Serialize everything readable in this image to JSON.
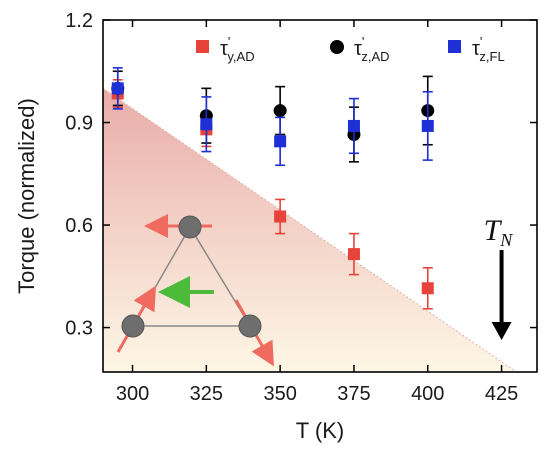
{
  "chart_data": {
    "type": "scatter",
    "xlabel": "T (K)",
    "ylabel": "Torque (normalized)",
    "xlim": [
      290,
      437
    ],
    "ylim": [
      0.17,
      1.2
    ],
    "xticks": [
      300,
      325,
      350,
      375,
      400,
      425
    ],
    "yticks": [
      0.3,
      0.6,
      0.9,
      1.2
    ],
    "grid": false,
    "legend_position": "top",
    "series": [
      {
        "name": "τ'y,AD",
        "name_main": "τ",
        "name_sub": "y,AD",
        "color": "#e8433a",
        "marker": "square",
        "x": [
          295,
          325,
          350,
          375,
          400
        ],
        "y": [
          0.985,
          0.88,
          0.625,
          0.515,
          0.415
        ],
        "err": [
          0.04,
          0.05,
          0.05,
          0.06,
          0.06
        ]
      },
      {
        "name": "τ'z,AD",
        "name_main": "τ",
        "name_sub": "z,AD",
        "color": "#000000",
        "marker": "circle",
        "x": [
          295,
          325,
          350,
          375,
          400
        ],
        "y": [
          1.0,
          0.92,
          0.935,
          0.865,
          0.935
        ],
        "err": [
          0.05,
          0.08,
          0.07,
          0.08,
          0.1
        ]
      },
      {
        "name": "τ'z,FL",
        "name_main": "τ",
        "name_sub": "z,FL",
        "color": "#1f2fd6",
        "marker": "square",
        "x": [
          295,
          325,
          350,
          375,
          400
        ],
        "y": [
          1.0,
          0.895,
          0.845,
          0.89,
          0.89
        ],
        "err": [
          0.06,
          0.08,
          0.07,
          0.08,
          0.1
        ]
      }
    ],
    "annotations": {
      "tn_main": "T",
      "tn_sub": "N",
      "tn_x": 425,
      "shading_boundary": [
        [
          290,
          1.0
        ],
        [
          430,
          0.17
        ]
      ],
      "shading_color_top": "#e8a7a3",
      "shading_color_bottom": "#fdf6e3",
      "inset_colors": {
        "node": "#6e6e6e",
        "red_arrow": "#f06a60",
        "green_arrow": "#4cbb3a",
        "line": "#888888"
      }
    }
  }
}
